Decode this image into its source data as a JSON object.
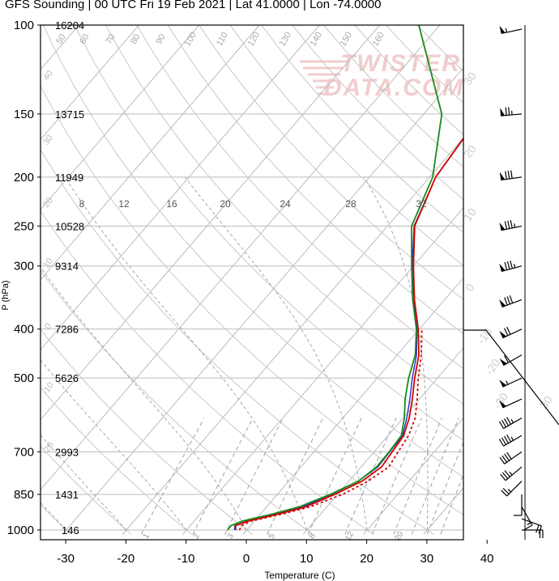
{
  "title": "GFS Sounding | 00 UTC Fri 19 Feb 2021 | Lat 41.0000 | Lon -74.0000",
  "watermark_line1": "TWISTER",
  "watermark_line2": "DATA.COM",
  "colors": {
    "temperature": "#d40000",
    "dewpoint": "#1a8a1a",
    "virtual_temp": "#2030c8",
    "grid": "#bbbbbb",
    "dry_adiabat": "#c8c8c8",
    "moist_adiabat": "#a8a8a8",
    "mixing_ratio": "#a0a0a0",
    "watermark": "#f0c8c8"
  },
  "chart_data": {
    "type": "skew-t",
    "xlabel": "Temperature (C)",
    "ylabel": "P (hPa)",
    "xlim": [
      -34,
      44
    ],
    "ylim": [
      1020,
      100
    ],
    "x_ticks": [
      -30,
      -20,
      -10,
      0,
      10,
      20,
      30,
      40
    ],
    "pressure_levels": [
      {
        "p": 100,
        "height": "16204"
      },
      {
        "p": 150,
        "height": "13715"
      },
      {
        "p": 200,
        "height": "11949"
      },
      {
        "p": 250,
        "height": "10528"
      },
      {
        "p": 300,
        "height": "9314"
      },
      {
        "p": 400,
        "height": "7286"
      },
      {
        "p": 500,
        "height": "5626"
      },
      {
        "p": 700,
        "height": "2993"
      },
      {
        "p": 850,
        "height": "1431"
      },
      {
        "p": 1000,
        "height": "146"
      }
    ],
    "isotherms": [
      -140,
      -130,
      -120,
      -110,
      -100,
      -90,
      -80,
      -70,
      -60,
      -50,
      -40,
      -30,
      -20,
      -10,
      0,
      10,
      20,
      30,
      40
    ],
    "isotherm_labels": [
      {
        "t": -30,
        "p": 1000,
        "text": "-30"
      },
      {
        "t": -20,
        "p": 1000,
        "text": "-20"
      },
      {
        "t": -10,
        "p": 1000,
        "text": "-10"
      },
      {
        "t": 0,
        "p": 1000,
        "text": "0"
      },
      {
        "t": 10,
        "p": 1000,
        "text": "10"
      },
      {
        "t": 20,
        "p": 1000,
        "text": "20"
      },
      {
        "t": 30,
        "p": 1000,
        "text": "30"
      },
      {
        "t": 40,
        "p": 1000,
        "text": "40"
      }
    ],
    "dry_adiabats": [
      -50,
      -40,
      -30,
      -20,
      -10,
      0,
      10,
      20,
      30,
      40,
      50,
      60,
      70,
      80,
      90,
      100,
      110,
      120,
      130,
      140,
      150,
      160,
      170
    ],
    "dry_adiabat_labels": [
      {
        "theta": 50,
        "text": "50"
      },
      {
        "theta": 60,
        "text": "60"
      },
      {
        "theta": 70,
        "text": "70"
      },
      {
        "theta": 80,
        "text": "80"
      },
      {
        "theta": 90,
        "text": "90"
      },
      {
        "theta": 100,
        "text": "100"
      },
      {
        "theta": 110,
        "text": "110"
      },
      {
        "theta": 120,
        "text": "120"
      },
      {
        "theta": 130,
        "text": "130"
      },
      {
        "theta": 140,
        "text": "140"
      },
      {
        "theta": 150,
        "text": "150"
      },
      {
        "theta": 160,
        "text": "160"
      }
    ],
    "moist_adiabats": [
      -30,
      -20,
      -10,
      0,
      10,
      20,
      30
    ],
    "moist_adiabat_labels": [
      {
        "theta": -30,
        "text": "-30"
      },
      {
        "theta": -20,
        "text": "-20"
      },
      {
        "theta": -10,
        "text": "-10"
      },
      {
        "theta": 0,
        "text": "0"
      },
      {
        "theta": 10,
        "text": "10"
      },
      {
        "theta": 20,
        "text": "20"
      },
      {
        "theta": 30,
        "text": "30"
      }
    ],
    "mixing_ratios": [
      1,
      2,
      3,
      5,
      8,
      12,
      16,
      20,
      24,
      28,
      32
    ],
    "mixing_ratio_labels_upper": [
      "8",
      "12",
      "16",
      "20",
      "24",
      "28",
      "32"
    ],
    "mixing_ratio_labels_lower": [
      "1",
      "2",
      "3",
      "5",
      "8",
      "12",
      "20"
    ],
    "hodograph_labels": [
      "40",
      "30",
      "20",
      "10",
      "0",
      "-10",
      "-20",
      "-30",
      "-40"
    ],
    "series": [
      {
        "name": "temperature",
        "points": [
          [
            1000,
            -1.8
          ],
          [
            980,
            -2.5
          ],
          [
            960,
            -1.0
          ],
          [
            930,
            3.0
          ],
          [
            900,
            6.5
          ],
          [
            850,
            9.5
          ],
          [
            800,
            12.2
          ],
          [
            750,
            13.4
          ],
          [
            700,
            13.0
          ],
          [
            650,
            12.6
          ],
          [
            600,
            11.0
          ],
          [
            550,
            8.8
          ],
          [
            500,
            6.2
          ],
          [
            450,
            3.6
          ],
          [
            400,
            -0.2
          ],
          [
            350,
            -5.0
          ],
          [
            300,
            -10.0
          ],
          [
            250,
            -15.5
          ],
          [
            200,
            -19.0
          ],
          [
            150,
            -20.5
          ],
          [
            100,
            -14.0
          ]
        ]
      },
      {
        "name": "virtual_temp",
        "points": [
          [
            1000,
            -2.0
          ],
          [
            980,
            -2.6
          ],
          [
            960,
            -1.3
          ],
          [
            930,
            2.6
          ],
          [
            900,
            6.0
          ],
          [
            850,
            9.0
          ],
          [
            800,
            11.6
          ],
          [
            750,
            12.8
          ],
          [
            700,
            12.6
          ],
          [
            650,
            12.4
          ],
          [
            600,
            10.6
          ],
          [
            550,
            8.4
          ],
          [
            500,
            5.8
          ],
          [
            450,
            3.2
          ],
          [
            400,
            -0.4
          ],
          [
            350,
            -5.2
          ],
          [
            300,
            -10.2
          ],
          [
            250,
            -15.6
          ],
          [
            200,
            -19.0
          ],
          [
            150,
            -20.4
          ],
          [
            100,
            -13.4
          ]
        ]
      },
      {
        "name": "dewpoint",
        "points": [
          [
            1000,
            -3.2
          ],
          [
            980,
            -3.2
          ],
          [
            960,
            -2.0
          ],
          [
            930,
            2.0
          ],
          [
            900,
            5.4
          ],
          [
            850,
            8.8
          ],
          [
            800,
            11.6
          ],
          [
            750,
            12.6
          ],
          [
            700,
            12.5
          ],
          [
            650,
            12.2
          ],
          [
            600,
            10.2
          ],
          [
            550,
            7.6
          ],
          [
            500,
            5.2
          ],
          [
            450,
            3.0
          ],
          [
            400,
            -0.5
          ],
          [
            350,
            -5.3
          ],
          [
            300,
            -10.3
          ],
          [
            250,
            -16.0
          ],
          [
            200,
            -19.5
          ],
          [
            150,
            -27.0
          ],
          [
            100,
            -43.5
          ]
        ]
      },
      {
        "name": "parcel",
        "points": [
          [
            1000,
            -1.2
          ],
          [
            980,
            -1.5
          ],
          [
            960,
            -0.5
          ],
          [
            930,
            3.6
          ],
          [
            900,
            7.2
          ],
          [
            850,
            10.8
          ],
          [
            800,
            13.2
          ],
          [
            750,
            14.6
          ],
          [
            700,
            14.0
          ],
          [
            650,
            13.4
          ],
          [
            600,
            12.0
          ],
          [
            550,
            9.6
          ],
          [
            500,
            6.8
          ],
          [
            450,
            4.0
          ],
          [
            400,
            0.4
          ]
        ]
      }
    ],
    "wind_barbs": [
      {
        "p": 100,
        "dir": 258,
        "spd": 55
      },
      {
        "p": 150,
        "dir": 265,
        "spd": 75
      },
      {
        "p": 200,
        "dir": 262,
        "spd": 80
      },
      {
        "p": 250,
        "dir": 258,
        "spd": 85
      },
      {
        "p": 300,
        "dir": 255,
        "spd": 85
      },
      {
        "p": 350,
        "dir": 250,
        "spd": 80
      },
      {
        "p": 400,
        "dir": 245,
        "spd": 70
      },
      {
        "p": 450,
        "dir": 240,
        "spd": 60
      },
      {
        "p": 500,
        "dir": 245,
        "spd": 55
      },
      {
        "p": 550,
        "dir": 245,
        "spd": 50
      },
      {
        "p": 600,
        "dir": 240,
        "spd": 45
      },
      {
        "p": 650,
        "dir": 240,
        "spd": 45
      },
      {
        "p": 700,
        "dir": 235,
        "spd": 40
      },
      {
        "p": 750,
        "dir": 230,
        "spd": 35
      },
      {
        "p": 800,
        "dir": 225,
        "spd": 25
      },
      {
        "p": 850,
        "dir": 180,
        "spd": 10
      },
      {
        "p": 900,
        "dir": 150,
        "spd": 15
      },
      {
        "p": 950,
        "dir": 110,
        "spd": 20
      },
      {
        "p": 1000,
        "dir": 90,
        "spd": 20
      }
    ]
  }
}
